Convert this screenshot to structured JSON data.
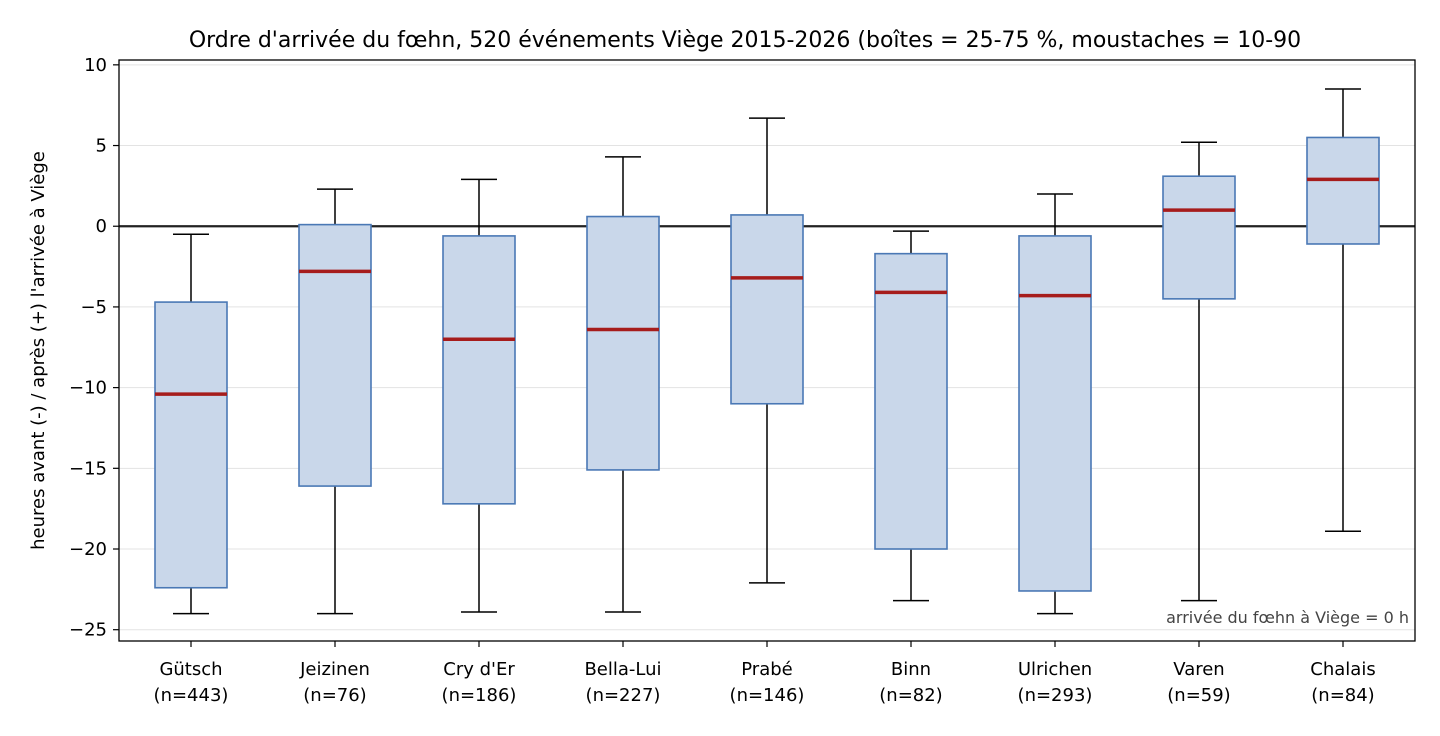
{
  "chart_data": {
    "type": "box",
    "title": "Ordre d'arrivée du fœhn, 520 événements Viège 2015-2026 (boîtes = 25-75 %, moustaches = 10-90",
    "ylabel": "heures avant (-) / après (+) l'arrivée à Viège",
    "xlabel": "",
    "ylim": [
      -25.7,
      10.3
    ],
    "yticks": [
      10,
      5,
      0,
      -5,
      -10,
      -15,
      -20,
      -25
    ],
    "ytick_labels": [
      "10",
      "5",
      "0",
      "−5",
      "−10",
      "−15",
      "−20",
      "−25"
    ],
    "grid": "horizontal",
    "reference_line": 0,
    "annotation": "arrivée du fœhn à Viège = 0 h",
    "colors": {
      "box_fill": "#c9d7ea",
      "box_edge": "#4a78b5",
      "median": "#a61c1c",
      "whisker": "#000000",
      "grid": "#e3e3e3"
    },
    "categories": [
      {
        "name": "Gütsch",
        "n_label": "(n=443)",
        "p10": -24.0,
        "q1": -22.4,
        "median": -10.4,
        "q3": -4.7,
        "p90": -0.5
      },
      {
        "name": "Jeizinen",
        "n_label": "(n=76)",
        "p10": -24.0,
        "q1": -16.1,
        "median": -2.8,
        "q3": 0.1,
        "p90": 2.3
      },
      {
        "name": "Cry d'Er",
        "n_label": "(n=186)",
        "p10": -23.9,
        "q1": -17.2,
        "median": -7.0,
        "q3": -0.6,
        "p90": 2.9
      },
      {
        "name": "Bella-Lui",
        "n_label": "(n=227)",
        "p10": -23.9,
        "q1": -15.1,
        "median": -6.4,
        "q3": 0.6,
        "p90": 4.3
      },
      {
        "name": "Prabé",
        "n_label": "(n=146)",
        "p10": -22.1,
        "q1": -11.0,
        "median": -3.2,
        "q3": 0.7,
        "p90": 6.7
      },
      {
        "name": "Binn",
        "n_label": "(n=82)",
        "p10": -23.2,
        "q1": -20.0,
        "median": -4.1,
        "q3": -1.7,
        "p90": -0.3
      },
      {
        "name": "Ulrichen",
        "n_label": "(n=293)",
        "p10": -24.0,
        "q1": -22.6,
        "median": -4.3,
        "q3": -0.6,
        "p90": 2.0
      },
      {
        "name": "Varen",
        "n_label": "(n=59)",
        "p10": -23.2,
        "q1": -4.5,
        "median": 1.0,
        "q3": 3.1,
        "p90": 5.2
      },
      {
        "name": "Chalais",
        "n_label": "(n=84)",
        "p10": -18.9,
        "q1": -1.1,
        "median": 2.9,
        "q3": 5.5,
        "p90": 8.5
      }
    ]
  }
}
